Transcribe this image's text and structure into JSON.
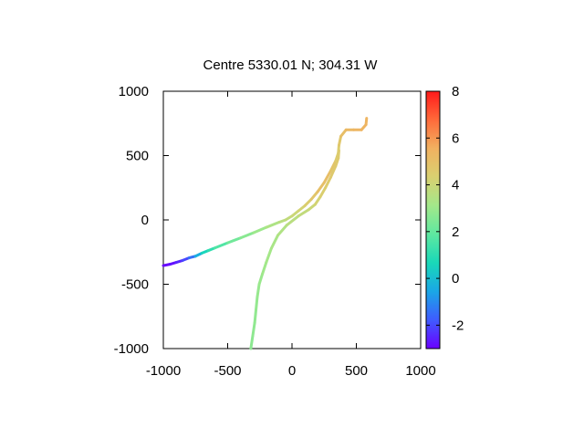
{
  "chart_data": {
    "type": "line",
    "title": "Centre 5330.01 N; 304.31  W",
    "xlim": [
      -1000,
      1000
    ],
    "ylim": [
      -1000,
      1000
    ],
    "x_ticks": [
      "-1000",
      "-500",
      "0",
      "500",
      "1000"
    ],
    "y_ticks": [
      "1000",
      "500",
      "0",
      "-500",
      "-1000"
    ],
    "colorbar": {
      "range": [
        -3,
        8
      ],
      "ticks": [
        "8",
        "6",
        "4",
        "2",
        "0",
        "-2"
      ],
      "palette": [
        "#6a00ff",
        "#3f5bff",
        "#1aa7e6",
        "#19d8b8",
        "#5ee8a0",
        "#a3e88a",
        "#d9d070",
        "#f1b160",
        "#ff6a3a",
        "#ff1a1a"
      ]
    },
    "series": [
      {
        "points": [
          [
            -1000,
            -355,
            -3.0
          ],
          [
            -950,
            -345,
            -2.9
          ],
          [
            -900,
            -330,
            -2.7
          ],
          [
            -850,
            -315,
            -2.3
          ],
          [
            -800,
            -295,
            -1.8
          ],
          [
            -750,
            -282,
            -1.0
          ],
          [
            -700,
            -258,
            0.3
          ],
          [
            -650,
            -238,
            0.9
          ],
          [
            -600,
            -218,
            1.3
          ],
          [
            -500,
            -178,
            2.0
          ],
          [
            -400,
            -140,
            2.5
          ],
          [
            -300,
            -100,
            2.8
          ],
          [
            -200,
            -58,
            3.2
          ],
          [
            -100,
            -18,
            3.5
          ],
          [
            -50,
            0,
            3.7
          ],
          [
            0,
            30,
            3.9
          ],
          [
            50,
            70,
            4.1
          ],
          [
            100,
            110,
            4.3
          ],
          [
            150,
            160,
            4.6
          ],
          [
            200,
            220,
            4.9
          ],
          [
            250,
            290,
            5.1
          ],
          [
            300,
            380,
            5.0
          ],
          [
            340,
            460,
            4.6
          ],
          [
            360,
            520,
            4.4
          ],
          [
            365,
            580,
            4.5
          ],
          [
            380,
            650,
            4.9
          ],
          [
            420,
            700,
            5.2
          ],
          [
            480,
            700,
            5.3
          ],
          [
            540,
            700,
            5.4
          ],
          [
            575,
            740,
            5.4
          ],
          [
            580,
            790,
            5.4
          ]
        ]
      },
      {
        "points": [
          [
            -320,
            -1000,
            2.7
          ],
          [
            -305,
            -900,
            2.7
          ],
          [
            -290,
            -800,
            2.8
          ],
          [
            -280,
            -700,
            2.8
          ],
          [
            -270,
            -600,
            2.9
          ],
          [
            -255,
            -500,
            2.9
          ],
          [
            -230,
            -420,
            3.0
          ],
          [
            -200,
            -330,
            3.1
          ],
          [
            -160,
            -220,
            3.2
          ],
          [
            -110,
            -120,
            3.3
          ],
          [
            -40,
            -40,
            3.5
          ],
          [
            50,
            30,
            3.7
          ],
          [
            130,
            80,
            3.9
          ],
          [
            180,
            120,
            4.1
          ],
          [
            220,
            180,
            4.3
          ],
          [
            260,
            250,
            4.5
          ],
          [
            300,
            330,
            4.6
          ],
          [
            340,
            420,
            4.6
          ],
          [
            360,
            480,
            4.6
          ],
          [
            365,
            540,
            4.5
          ]
        ]
      }
    ]
  }
}
